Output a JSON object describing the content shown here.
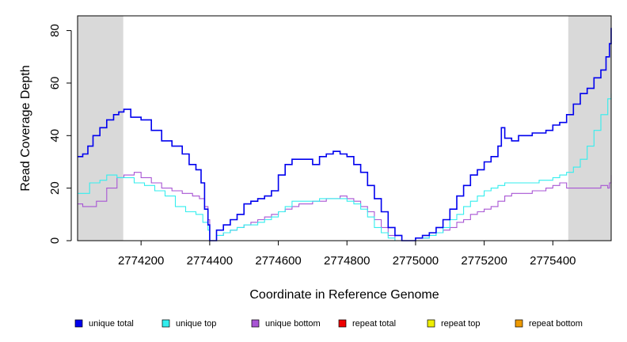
{
  "chart_data": {
    "type": "line",
    "title": "",
    "xlabel": "Coordinate in Reference Genome",
    "ylabel": "Read Coverage Depth",
    "xlim": [
      2774015,
      2775570
    ],
    "ylim": [
      0,
      85
    ],
    "x_ticks": [
      2774200,
      2774400,
      2774600,
      2774800,
      2775000,
      2775200,
      2775400
    ],
    "y_ticks": [
      0,
      20,
      40,
      60,
      80
    ],
    "x_tick_labels": [
      "2774200",
      "2774400",
      "2774600",
      "2774800",
      "2775000",
      "2775200",
      "2775400"
    ],
    "y_tick_labels": [
      "0",
      "20",
      "40",
      "60",
      "80"
    ],
    "shaded_regions": [
      {
        "x_start": 2774015,
        "x_end": 2774148,
        "color": "#d9d9d9"
      },
      {
        "x_start": 2775445,
        "x_end": 2775570,
        "color": "#d9d9d9"
      }
    ],
    "grid": false,
    "legend_position": "bottom",
    "series": [
      {
        "name": "unique total",
        "color": "#0000ee",
        "x": [
          2774015,
          2774030,
          2774045,
          2774060,
          2774080,
          2774100,
          2774120,
          2774135,
          2774150,
          2774170,
          2774200,
          2774230,
          2774260,
          2774290,
          2774320,
          2774340,
          2774360,
          2774375,
          2774385,
          2774395,
          2774400,
          2774405,
          2774420,
          2774440,
          2774460,
          2774480,
          2774500,
          2774520,
          2774540,
          2774560,
          2774580,
          2774600,
          2774620,
          2774640,
          2774660,
          2774680,
          2774700,
          2774720,
          2774740,
          2774760,
          2774780,
          2774800,
          2774820,
          2774840,
          2774860,
          2774880,
          2774900,
          2774920,
          2774940,
          2774960,
          2774980,
          2775000,
          2775020,
          2775040,
          2775060,
          2775080,
          2775100,
          2775120,
          2775140,
          2775160,
          2775180,
          2775200,
          2775220,
          2775240,
          2775250,
          2775260,
          2775280,
          2775300,
          2775320,
          2775340,
          2775360,
          2775380,
          2775400,
          2775420,
          2775440,
          2775460,
          2775480,
          2775500,
          2775520,
          2775540,
          2775555,
          2775565,
          2775570
        ],
        "y": [
          32,
          33,
          36,
          40,
          43,
          46,
          48,
          49,
          50,
          47,
          46,
          42,
          38,
          36,
          33,
          29,
          27,
          22,
          12,
          6,
          0,
          0,
          4,
          6,
          8,
          10,
          14,
          15,
          16,
          17,
          19,
          25,
          29,
          31,
          31,
          31,
          29,
          32,
          33,
          34,
          33,
          32,
          29,
          26,
          21,
          16,
          11,
          5,
          2,
          0,
          0,
          1,
          2,
          3,
          5,
          8,
          12,
          17,
          21,
          25,
          27,
          30,
          32,
          36,
          43,
          39,
          38,
          40,
          40,
          41,
          41,
          42,
          44,
          45,
          48,
          52,
          56,
          58,
          62,
          65,
          70,
          75,
          81
        ]
      },
      {
        "name": "unique top",
        "color": "#33eeee",
        "x": [
          2774015,
          2774030,
          2774050,
          2774080,
          2774100,
          2774130,
          2774150,
          2774180,
          2774210,
          2774240,
          2774270,
          2774300,
          2774330,
          2774360,
          2774380,
          2774395,
          2774400,
          2774405,
          2774420,
          2774440,
          2774460,
          2774480,
          2774500,
          2774520,
          2774540,
          2774560,
          2774580,
          2774600,
          2774620,
          2774640,
          2774660,
          2774680,
          2774700,
          2774720,
          2774740,
          2774760,
          2774780,
          2774800,
          2774820,
          2774840,
          2774860,
          2774880,
          2774900,
          2774920,
          2774940,
          2774960,
          2774980,
          2775000,
          2775020,
          2775040,
          2775060,
          2775080,
          2775100,
          2775120,
          2775140,
          2775160,
          2775180,
          2775200,
          2775220,
          2775240,
          2775260,
          2775280,
          2775300,
          2775320,
          2775340,
          2775360,
          2775380,
          2775400,
          2775420,
          2775440,
          2775460,
          2775480,
          2775500,
          2775520,
          2775540,
          2775560,
          2775570
        ],
        "y": [
          18,
          18,
          22,
          23,
          25,
          24,
          24,
          22,
          21,
          19,
          17,
          13,
          11,
          10,
          7,
          4,
          0,
          0,
          2,
          3,
          4,
          5,
          6,
          6,
          7,
          8,
          9,
          11,
          13,
          15,
          15,
          15,
          15,
          16,
          16,
          16,
          16,
          15,
          14,
          12,
          9,
          5,
          3,
          1,
          0,
          0,
          0,
          1,
          1,
          2,
          3,
          5,
          8,
          10,
          13,
          15,
          17,
          19,
          20,
          21,
          22,
          22,
          22,
          22,
          22,
          23,
          23,
          24,
          25,
          26,
          28,
          31,
          36,
          42,
          48,
          54,
          56
        ]
      },
      {
        "name": "unique bottom",
        "color": "#a855d4",
        "x": [
          2774015,
          2774030,
          2774050,
          2774070,
          2774100,
          2774130,
          2774150,
          2774180,
          2774200,
          2774230,
          2774260,
          2774290,
          2774320,
          2774350,
          2774370,
          2774385,
          2774395,
          2774400,
          2774405,
          2774420,
          2774440,
          2774460,
          2774480,
          2774500,
          2774520,
          2774540,
          2774560,
          2774580,
          2774600,
          2774620,
          2774640,
          2774660,
          2774680,
          2774700,
          2774720,
          2774740,
          2774760,
          2774780,
          2774800,
          2774820,
          2774840,
          2774860,
          2774880,
          2774900,
          2774920,
          2774940,
          2774960,
          2774980,
          2775000,
          2775020,
          2775040,
          2775060,
          2775080,
          2775100,
          2775120,
          2775140,
          2775160,
          2775180,
          2775200,
          2775220,
          2775240,
          2775260,
          2775280,
          2775300,
          2775320,
          2775340,
          2775360,
          2775380,
          2775400,
          2775420,
          2775440,
          2775460,
          2775480,
          2775500,
          2775520,
          2775540,
          2775560,
          2775565,
          2775570
        ],
        "y": [
          14,
          13,
          13,
          15,
          20,
          24,
          25,
          26,
          24,
          22,
          20,
          19,
          18,
          17,
          16,
          13,
          8,
          0,
          0,
          2,
          3,
          4,
          5,
          6,
          7,
          8,
          9,
          10,
          11,
          12,
          13,
          14,
          14,
          15,
          15,
          16,
          16,
          17,
          16,
          15,
          13,
          11,
          8,
          5,
          2,
          0,
          0,
          0,
          1,
          1,
          2,
          3,
          4,
          5,
          7,
          8,
          10,
          11,
          12,
          13,
          15,
          17,
          18,
          18,
          18,
          19,
          19,
          20,
          21,
          22,
          20,
          20,
          20,
          20,
          20,
          21,
          20,
          22,
          25
        ]
      },
      {
        "name": "repeat total",
        "color": "#ee0000",
        "x": [
          2774015,
          2775570
        ],
        "y": [
          0,
          0
        ]
      },
      {
        "name": "repeat top",
        "color": "#eeee00",
        "x": [
          2774015,
          2775570
        ],
        "y": [
          0,
          0
        ]
      },
      {
        "name": "repeat bottom",
        "color": "#ee9a00",
        "x": [
          2774015,
          2775570
        ],
        "y": [
          0,
          0
        ]
      }
    ]
  }
}
